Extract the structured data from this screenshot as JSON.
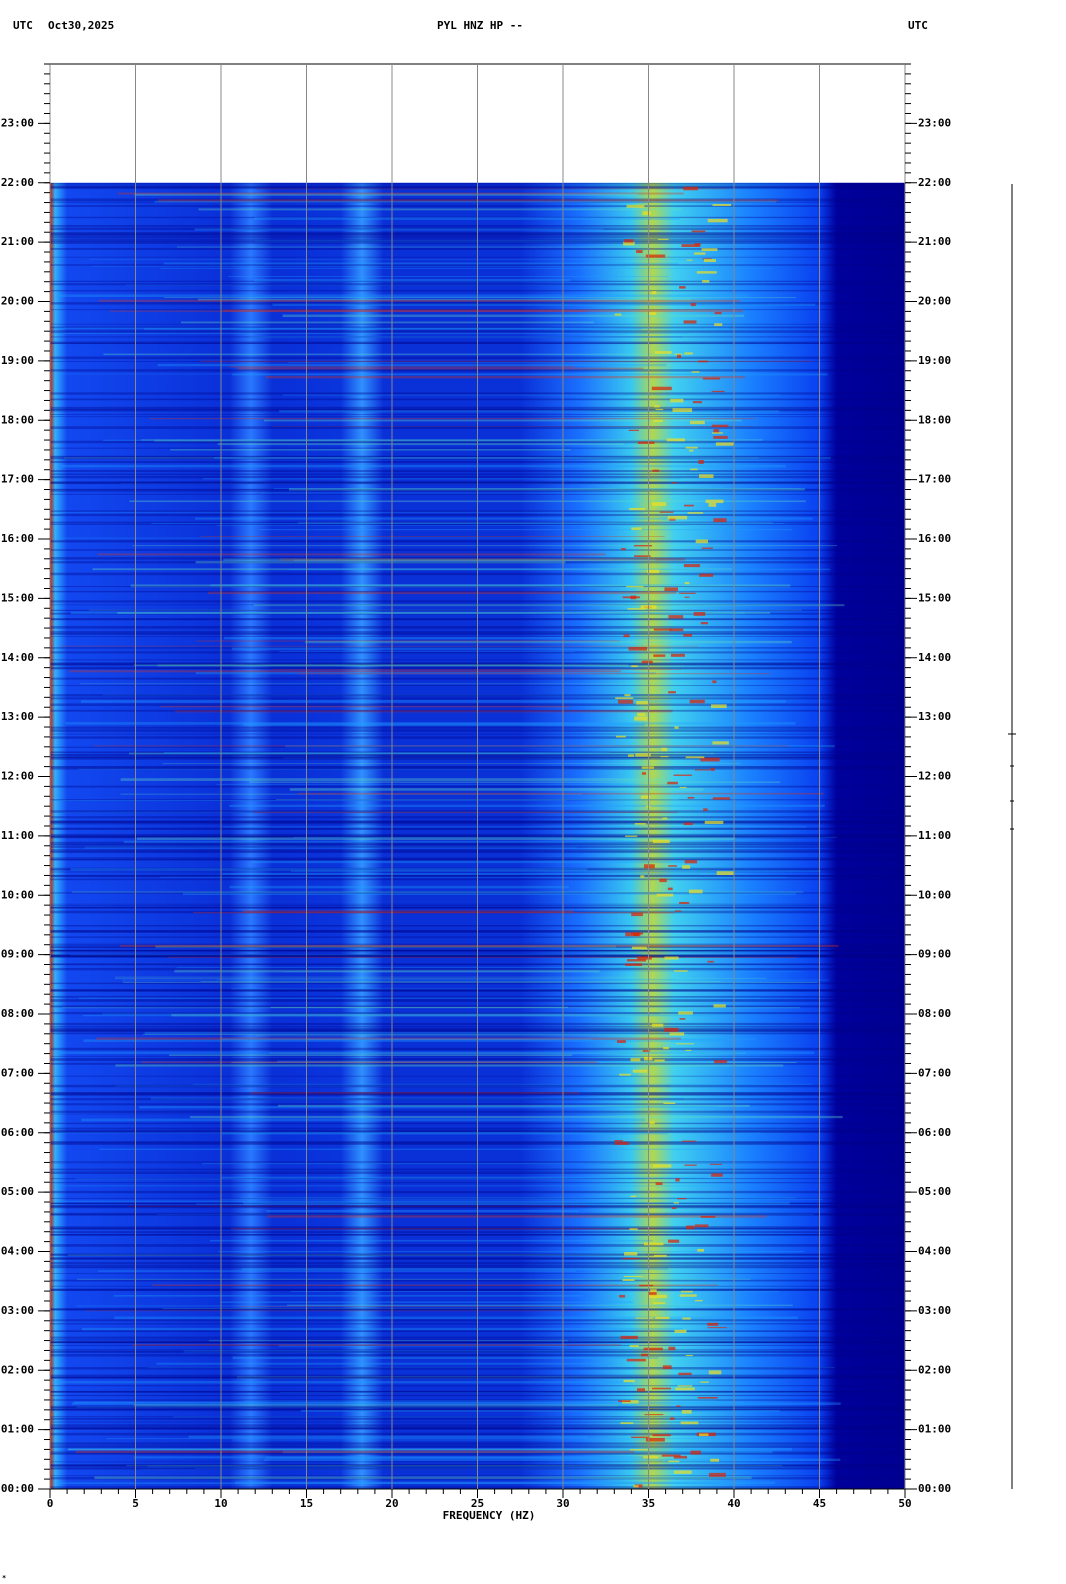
{
  "chart_data": {
    "type": "spectrogram",
    "title": "PYL HNZ HP --",
    "timezone_left": "UTC",
    "date": "Oct30,2025",
    "timezone_right": "UTC",
    "x_label": "FREQUENCY (HZ)",
    "xlim": [
      0,
      50
    ],
    "xticks": [
      0,
      5,
      10,
      15,
      20,
      25,
      30,
      35,
      40,
      45,
      50
    ],
    "ylim": [
      0,
      24
    ],
    "yticks": [
      {
        "value": 0,
        "label": "00:00"
      },
      {
        "value": 1,
        "label": "01:00"
      },
      {
        "value": 2,
        "label": "02:00"
      },
      {
        "value": 3,
        "label": "03:00"
      },
      {
        "value": 4,
        "label": "04:00"
      },
      {
        "value": 5,
        "label": "05:00"
      },
      {
        "value": 6,
        "label": "06:00"
      },
      {
        "value": 7,
        "label": "07:00"
      },
      {
        "value": 8,
        "label": "08:00"
      },
      {
        "value": 9,
        "label": "09:00"
      },
      {
        "value": 10,
        "label": "10:00"
      },
      {
        "value": 11,
        "label": "11:00"
      },
      {
        "value": 12,
        "label": "12:00"
      },
      {
        "value": 13,
        "label": "13:00"
      },
      {
        "value": 14,
        "label": "14:00"
      },
      {
        "value": 15,
        "label": "15:00"
      },
      {
        "value": 16,
        "label": "16:00"
      },
      {
        "value": 17,
        "label": "17:00"
      },
      {
        "value": 18,
        "label": "18:00"
      },
      {
        "value": 19,
        "label": "19:00"
      },
      {
        "value": 20,
        "label": "20:00"
      },
      {
        "value": 21,
        "label": "21:00"
      },
      {
        "value": 22,
        "label": "22:00"
      },
      {
        "value": 23,
        "label": "23:00"
      }
    ],
    "data_ylim": [
      0,
      22
    ],
    "grid": true
  }
}
